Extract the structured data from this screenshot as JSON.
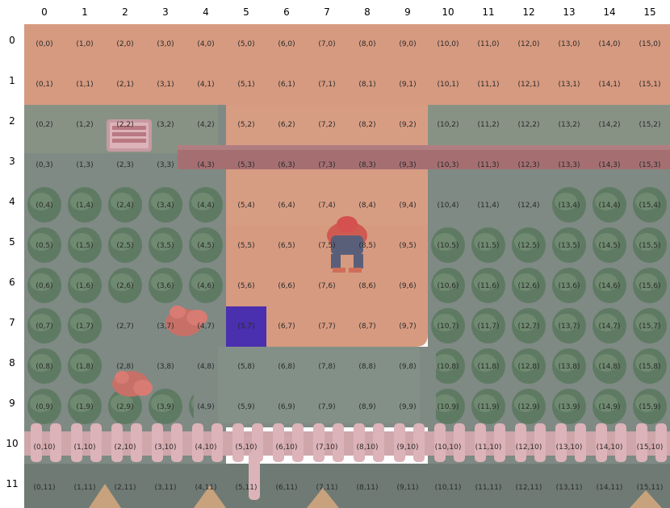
{
  "grid": {
    "columns": 16,
    "rows": 12,
    "column_labels": [
      "0",
      "1",
      "2",
      "3",
      "4",
      "5",
      "6",
      "7",
      "8",
      "9",
      "10",
      "11",
      "12",
      "13",
      "14",
      "15"
    ],
    "row_labels": [
      "0",
      "1",
      "2",
      "3",
      "4",
      "5",
      "6",
      "7",
      "8",
      "9",
      "10",
      "11"
    ]
  },
  "highlighted_tile": {
    "col": 5,
    "row": 7
  },
  "player": {
    "col": 7,
    "row": 5
  },
  "colors": {
    "sky": "#d69a80",
    "dark_ground": "#7f8a84",
    "path": "#d69a80",
    "wall": "#a56f72",
    "hedge": "#5f7a63",
    "fence": "#cfa6aa",
    "flower": "#cf6f6c",
    "highlight": "#4a2fae",
    "player_hat": "#d55050",
    "player_body": "#5a5f79",
    "sign": "#dcb3b8"
  },
  "icons": [
    "sign-icon",
    "player-sprite-icon",
    "flower-icon",
    "tree-icon",
    "fence-icon"
  ]
}
